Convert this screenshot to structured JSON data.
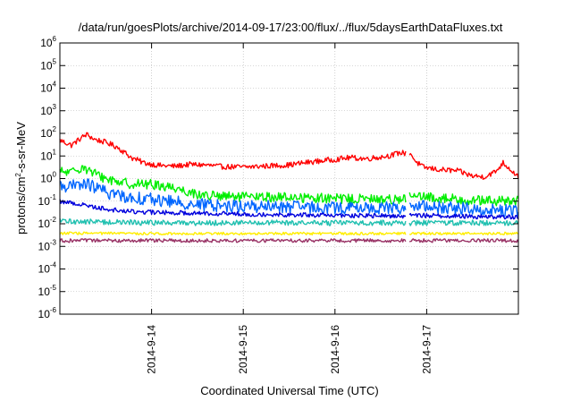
{
  "chart_data": {
    "type": "line",
    "title": "/data/run/goesPlots/archive/2014-09-17/23:00/flux/../flux/5daysEarthDataFluxes.txt",
    "xlabel": "Coordinated Universal Time (UTC)",
    "ylabel": {
      "pre": "protons/cm",
      "sup": "2",
      "post": "-s-sr-MeV"
    },
    "yscale": "log",
    "ylim": [
      1e-06,
      1000000.0
    ],
    "yticks": [
      {
        "value": 1e-06,
        "base": "10",
        "exp": "-6"
      },
      {
        "value": 1e-05,
        "base": "10",
        "exp": "-5"
      },
      {
        "value": 0.0001,
        "base": "10",
        "exp": "-4"
      },
      {
        "value": 0.001,
        "base": "10",
        "exp": "-3"
      },
      {
        "value": 0.01,
        "base": "10",
        "exp": "-2"
      },
      {
        "value": 0.1,
        "base": "10",
        "exp": "-1"
      },
      {
        "value": 1,
        "base": "10",
        "exp": "0"
      },
      {
        "value": 10,
        "base": "10",
        "exp": "1"
      },
      {
        "value": 100,
        "base": "10",
        "exp": "2"
      },
      {
        "value": 1000,
        "base": "10",
        "exp": "3"
      },
      {
        "value": 10000,
        "base": "10",
        "exp": "4"
      },
      {
        "value": 100000,
        "base": "10",
        "exp": "5"
      },
      {
        "value": 1000000,
        "base": "10",
        "exp": "6"
      }
    ],
    "xlim": [
      "2014-09-13T00:00",
      "2014-09-18T00:00"
    ],
    "xticks": [
      {
        "value": "2014-09-14T00:00",
        "label": "2014-9-14"
      },
      {
        "value": "2014-09-15T00:00",
        "label": "2014-9-15"
      },
      {
        "value": "2014-09-16T00:00",
        "label": "2014-9-16"
      },
      {
        "value": "2014-09-17T00:00",
        "label": "2014-9-17"
      }
    ],
    "grid": true,
    "gaps": [
      [
        "2014-09-16T18:40",
        "2014-09-16T19:30"
      ]
    ],
    "series": [
      {
        "color": "#ff0000",
        "noise": 0.12,
        "points": [
          [
            "2014-09-13T00:00",
            50
          ],
          [
            "2014-09-13T03:00",
            30
          ],
          [
            "2014-09-13T06:00",
            70
          ],
          [
            "2014-09-13T07:00",
            90
          ],
          [
            "2014-09-13T09:00",
            55
          ],
          [
            "2014-09-13T12:00",
            40
          ],
          [
            "2014-09-13T15:00",
            25
          ],
          [
            "2014-09-13T17:00",
            14
          ],
          [
            "2014-09-13T19:00",
            8
          ],
          [
            "2014-09-13T22:00",
            5
          ],
          [
            "2014-09-14T02:00",
            3.8
          ],
          [
            "2014-09-14T06:00",
            3.5
          ],
          [
            "2014-09-14T10:00",
            4.2
          ],
          [
            "2014-09-14T14:00",
            4.0
          ],
          [
            "2014-09-14T18:00",
            3.4
          ],
          [
            "2014-09-15T00:00",
            3.2
          ],
          [
            "2014-09-15T06:00",
            3.6
          ],
          [
            "2014-09-15T12:00",
            4.0
          ],
          [
            "2014-09-15T16:00",
            5.0
          ],
          [
            "2014-09-15T20:00",
            6.0
          ],
          [
            "2014-09-16T00:00",
            7.0
          ],
          [
            "2014-09-16T04:00",
            8.5
          ],
          [
            "2014-09-16T08:00",
            7.5
          ],
          [
            "2014-09-16T12:00",
            9.0
          ],
          [
            "2014-09-16T15:00",
            11
          ],
          [
            "2014-09-16T17:00",
            14
          ],
          [
            "2014-09-16T18:30",
            13
          ],
          [
            "2014-09-16T19:40",
            14
          ],
          [
            "2014-09-16T21:00",
            6
          ],
          [
            "2014-09-16T23:00",
            3.2
          ],
          [
            "2014-09-17T03:00",
            2.5
          ],
          [
            "2014-09-17T08:00",
            2.2
          ],
          [
            "2014-09-17T12:00",
            1.3
          ],
          [
            "2014-09-17T15:00",
            1.2
          ],
          [
            "2014-09-17T18:00",
            2.0
          ],
          [
            "2014-09-17T20:00",
            5.0
          ],
          [
            "2014-09-17T22:00",
            2.5
          ],
          [
            "2014-09-18T00:00",
            1.2
          ]
        ]
      },
      {
        "color": "#00ee00",
        "noise": 0.22,
        "points": [
          [
            "2014-09-13T00:00",
            2.0
          ],
          [
            "2014-09-13T03:00",
            1.8
          ],
          [
            "2014-09-13T06:00",
            3.5
          ],
          [
            "2014-09-13T08:00",
            2.0
          ],
          [
            "2014-09-13T12:00",
            1.0
          ],
          [
            "2014-09-13T18:00",
            0.6
          ],
          [
            "2014-09-14T00:00",
            0.55
          ],
          [
            "2014-09-14T06:00",
            0.4
          ],
          [
            "2014-09-14T12:00",
            0.2
          ],
          [
            "2014-09-14T18:00",
            0.16
          ],
          [
            "2014-09-15T00:00",
            0.15
          ],
          [
            "2014-09-15T12:00",
            0.15
          ],
          [
            "2014-09-16T00:00",
            0.13
          ],
          [
            "2014-09-16T12:00",
            0.12
          ],
          [
            "2014-09-16T18:30",
            0.13
          ],
          [
            "2014-09-16T19:40",
            0.16
          ],
          [
            "2014-09-17T06:00",
            0.13
          ],
          [
            "2014-09-17T12:00",
            0.11
          ],
          [
            "2014-09-17T18:00",
            0.1
          ],
          [
            "2014-09-18T00:00",
            0.1
          ]
        ]
      },
      {
        "color": "#0066ff",
        "noise": 0.28,
        "points": [
          [
            "2014-09-13T00:00",
            0.5
          ],
          [
            "2014-09-13T04:00",
            0.45
          ],
          [
            "2014-09-13T07:00",
            0.6
          ],
          [
            "2014-09-13T12:00",
            0.25
          ],
          [
            "2014-09-13T18:00",
            0.15
          ],
          [
            "2014-09-14T00:00",
            0.12
          ],
          [
            "2014-09-14T12:00",
            0.07
          ],
          [
            "2014-09-15T00:00",
            0.06
          ],
          [
            "2014-09-15T12:00",
            0.055
          ],
          [
            "2014-09-16T00:00",
            0.05
          ],
          [
            "2014-09-16T18:30",
            0.05
          ],
          [
            "2014-09-16T19:40",
            0.06
          ],
          [
            "2014-09-17T06:00",
            0.05
          ],
          [
            "2014-09-17T18:00",
            0.04
          ],
          [
            "2014-09-18T00:00",
            0.035
          ]
        ]
      },
      {
        "color": "#0000dd",
        "noise": 0.1,
        "points": [
          [
            "2014-09-13T00:00",
            0.1
          ],
          [
            "2014-09-13T06:00",
            0.07
          ],
          [
            "2014-09-13T12:00",
            0.045
          ],
          [
            "2014-09-13T18:00",
            0.035
          ],
          [
            "2014-09-14T00:00",
            0.032
          ],
          [
            "2014-09-14T12:00",
            0.03
          ],
          [
            "2014-09-15T00:00",
            0.027
          ],
          [
            "2014-09-15T12:00",
            0.025
          ],
          [
            "2014-09-16T00:00",
            0.023
          ],
          [
            "2014-09-16T18:30",
            0.022
          ],
          [
            "2014-09-16T19:40",
            0.024
          ],
          [
            "2014-09-17T06:00",
            0.022
          ],
          [
            "2014-09-17T18:00",
            0.02
          ],
          [
            "2014-09-18T00:00",
            0.02
          ]
        ]
      },
      {
        "color": "#20c0b0",
        "noise": 0.12,
        "points": [
          [
            "2014-09-13T00:00",
            0.013
          ],
          [
            "2014-09-13T12:00",
            0.012
          ],
          [
            "2014-09-14T00:00",
            0.011
          ],
          [
            "2014-09-15T00:00",
            0.011
          ],
          [
            "2014-09-16T00:00",
            0.011
          ],
          [
            "2014-09-16T18:30",
            0.011
          ],
          [
            "2014-09-16T19:40",
            0.011
          ],
          [
            "2014-09-17T12:00",
            0.011
          ],
          [
            "2014-09-18T00:00",
            0.011
          ]
        ]
      },
      {
        "color": "#ffee00",
        "noise": 0.06,
        "points": [
          [
            "2014-09-13T00:00",
            0.0038
          ],
          [
            "2014-09-14T00:00",
            0.0037
          ],
          [
            "2014-09-15T00:00",
            0.0037
          ],
          [
            "2014-09-16T00:00",
            0.0037
          ],
          [
            "2014-09-16T18:30",
            0.0037
          ],
          [
            "2014-09-16T19:40",
            0.0037
          ],
          [
            "2014-09-17T12:00",
            0.0037
          ],
          [
            "2014-09-18T00:00",
            0.0037
          ]
        ]
      },
      {
        "color": "#993366",
        "noise": 0.08,
        "points": [
          [
            "2014-09-13T00:00",
            0.0018
          ],
          [
            "2014-09-14T00:00",
            0.0018
          ],
          [
            "2014-09-15T00:00",
            0.0018
          ],
          [
            "2014-09-16T00:00",
            0.0018
          ],
          [
            "2014-09-16T18:30",
            0.0018
          ],
          [
            "2014-09-16T19:40",
            0.0018
          ],
          [
            "2014-09-17T12:00",
            0.0018
          ],
          [
            "2014-09-18T00:00",
            0.0018
          ]
        ]
      }
    ]
  }
}
